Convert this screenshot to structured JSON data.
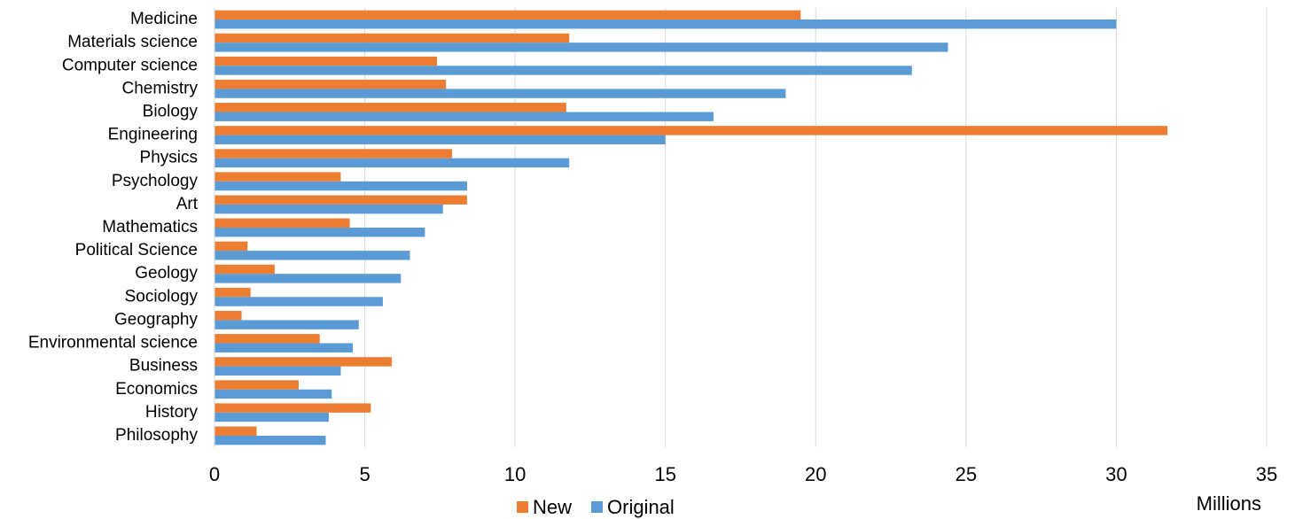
{
  "chart_data": {
    "type": "bar",
    "orientation": "horizontal",
    "title": "",
    "xlabel": "",
    "ylabel": "",
    "unit_label": "Millions",
    "xlim": [
      0,
      35
    ],
    "xticks": [
      0,
      5,
      10,
      15,
      20,
      25,
      30,
      35
    ],
    "grid": "vertical",
    "legend_position": "bottom",
    "categories": [
      "Medicine",
      "Materials science",
      "Computer science",
      "Chemistry",
      "Biology",
      "Engineering",
      "Physics",
      "Psychology",
      "Art",
      "Mathematics",
      "Political Science",
      "Geology",
      "Sociology",
      "Geography",
      "Environmental science",
      "Business",
      "Economics",
      "History",
      "Philosophy"
    ],
    "series": [
      {
        "name": "New",
        "color": "#ED7D31",
        "values": [
          19.5,
          11.8,
          7.4,
          7.7,
          11.7,
          31.7,
          7.9,
          4.2,
          8.4,
          4.5,
          1.1,
          2.0,
          1.2,
          0.9,
          3.5,
          5.9,
          2.8,
          5.2,
          1.4
        ]
      },
      {
        "name": "Original",
        "color": "#5B9BD5",
        "values": [
          30.0,
          24.4,
          23.2,
          19.0,
          16.6,
          15.0,
          11.8,
          8.4,
          7.6,
          7.0,
          6.5,
          6.2,
          5.6,
          4.8,
          4.6,
          4.2,
          3.9,
          3.8,
          3.7
        ]
      }
    ]
  }
}
